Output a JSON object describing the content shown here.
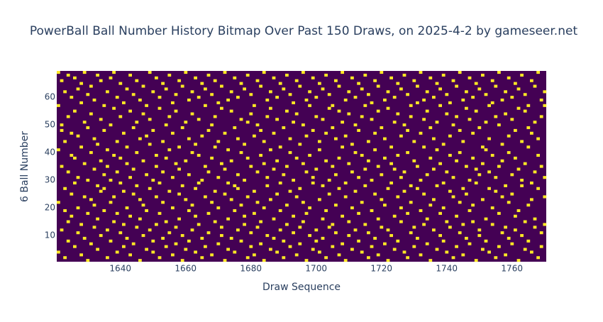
{
  "chart_data": {
    "type": "bitmap",
    "title": "PowerBall Ball Number History Bitmap Over Past 150 Draws, on 2025-4-2 by gameseer.net",
    "x_label": "Draw Sequence",
    "y_label": "6 Ball Number",
    "background_color": "#440154",
    "hit_color": "#fde725",
    "xlim": [
      1620.5,
      1770.5
    ],
    "ylim": [
      0.5,
      69.5
    ],
    "xticks": [
      1640,
      1660,
      1680,
      1700,
      1720,
      1740,
      1760
    ],
    "yticks": [
      10,
      20,
      30,
      40,
      50,
      60
    ],
    "x": [
      1621,
      1622,
      1623,
      1624,
      1625,
      1626,
      1627,
      1628,
      1629,
      1630,
      1631,
      1632,
      1633,
      1634,
      1635,
      1636,
      1637,
      1638,
      1639,
      1640,
      1641,
      1642,
      1643,
      1644,
      1645,
      1646,
      1647,
      1648,
      1649,
      1650,
      1651,
      1652,
      1653,
      1654,
      1655,
      1656,
      1657,
      1658,
      1659,
      1660,
      1661,
      1662,
      1663,
      1664,
      1665,
      1666,
      1667,
      1668,
      1669,
      1670,
      1671,
      1672,
      1673,
      1674,
      1675,
      1676,
      1677,
      1678,
      1679,
      1680,
      1681,
      1682,
      1683,
      1684,
      1685,
      1686,
      1687,
      1688,
      1689,
      1690,
      1691,
      1692,
      1693,
      1694,
      1695,
      1696,
      1697,
      1698,
      1699,
      1700,
      1701,
      1702,
      1703,
      1704,
      1705,
      1706,
      1707,
      1708,
      1709,
      1710,
      1711,
      1712,
      1713,
      1714,
      1715,
      1716,
      1717,
      1718,
      1719,
      1720,
      1721,
      1722,
      1723,
      1724,
      1725,
      1726,
      1727,
      1728,
      1729,
      1730,
      1731,
      1732,
      1733,
      1734,
      1735,
      1736,
      1737,
      1738,
      1739,
      1740,
      1741,
      1742,
      1743,
      1744,
      1745,
      1746,
      1747,
      1748,
      1749,
      1750,
      1751,
      1752,
      1753,
      1754,
      1755,
      1756,
      1757,
      1758,
      1759,
      1760,
      1761,
      1762,
      1763,
      1764,
      1765,
      1766,
      1767,
      1768,
      1769,
      1770
    ],
    "balls": [
      [
        4,
        22,
        41,
        57,
        69
      ],
      [
        12,
        35,
        48,
        50,
        66
      ],
      [
        2,
        19,
        27,
        44,
        62
      ],
      [
        8,
        15,
        33,
        53,
        68
      ],
      [
        17,
        25,
        39,
        47,
        60
      ],
      [
        6,
        29,
        38,
        55,
        67
      ],
      [
        11,
        20,
        31,
        46,
        63
      ],
      [
        3,
        14,
        42,
        58,
        65
      ],
      [
        9,
        24,
        36,
        51,
        69
      ],
      [
        1,
        18,
        30,
        49,
        61
      ],
      [
        7,
        23,
        40,
        54,
        64
      ],
      [
        13,
        21,
        34,
        45,
        59
      ],
      [
        5,
        16,
        28,
        43,
        68
      ],
      [
        10,
        26,
        37,
        52,
        66
      ],
      [
        19,
        27,
        32,
        48,
        57
      ],
      [
        2,
        12,
        35,
        41,
        62
      ],
      [
        8,
        22,
        30,
        50,
        67
      ],
      [
        15,
        24,
        39,
        56,
        69
      ],
      [
        4,
        18,
        33,
        44,
        60
      ],
      [
        11,
        29,
        38,
        53,
        65
      ],
      [
        6,
        14,
        26,
        47,
        58
      ],
      [
        9,
        20,
        36,
        42,
        63
      ],
      [
        3,
        17,
        31,
        55,
        68
      ],
      [
        7,
        25,
        34,
        49,
        61
      ],
      [
        13,
        28,
        40,
        51,
        66
      ],
      [
        1,
        16,
        23,
        45,
        59
      ],
      [
        10,
        21,
        37,
        54,
        64
      ],
      [
        5,
        19,
        32,
        46,
        57
      ],
      [
        12,
        27,
        43,
        52,
        69
      ],
      [
        4,
        8,
        30,
        48,
        62
      ],
      [
        14,
        24,
        35,
        39,
        67
      ],
      [
        2,
        18,
        29,
        56,
        60
      ],
      [
        9,
        22,
        33,
        44,
        65
      ],
      [
        6,
        15,
        38,
        50,
        63
      ],
      [
        11,
        26,
        41,
        53,
        68
      ],
      [
        3,
        20,
        31,
        47,
        58
      ],
      [
        7,
        13,
        36,
        55,
        61
      ],
      [
        16,
        25,
        34,
        42,
        66
      ],
      [
        1,
        10,
        28,
        49,
        64
      ],
      [
        5,
        23,
        37,
        51,
        69
      ],
      [
        8,
        19,
        32,
        45,
        59
      ],
      [
        12,
        21,
        40,
        54,
        62
      ],
      [
        4,
        17,
        27,
        43,
        67
      ],
      [
        14,
        29,
        39,
        52,
        60
      ],
      [
        2,
        9,
        30,
        46,
        65
      ],
      [
        6,
        24,
        35,
        57,
        63
      ],
      [
        11,
        18,
        33,
        48,
        68
      ],
      [
        3,
        22,
        38,
        50,
        61
      ],
      [
        15,
        26,
        42,
        53,
        66
      ],
      [
        7,
        20,
        31,
        44,
        58
      ],
      [
        10,
        13,
        36,
        56,
        64
      ],
      [
        1,
        25,
        34,
        47,
        69
      ],
      [
        5,
        16,
        29,
        41,
        59
      ],
      [
        9,
        23,
        37,
        55,
        62
      ],
      [
        4,
        19,
        28,
        49,
        67
      ],
      [
        12,
        27,
        32,
        45,
        60
      ],
      [
        8,
        21,
        40,
        52,
        65
      ],
      [
        14,
        17,
        30,
        43,
        63
      ],
      [
        2,
        24,
        38,
        51,
        68
      ],
      [
        6,
        11,
        35,
        54,
        61
      ],
      [
        3,
        18,
        26,
        46,
        57
      ],
      [
        13,
        22,
        33,
        50,
        66
      ],
      [
        7,
        15,
        39,
        48,
        64
      ],
      [
        1,
        20,
        36,
        44,
        69
      ],
      [
        10,
        28,
        31,
        53,
        59
      ],
      [
        5,
        23,
        41,
        56,
        62
      ],
      [
        9,
        16,
        34,
        47,
        67
      ],
      [
        4,
        25,
        37,
        52,
        60
      ],
      [
        12,
        19,
        29,
        42,
        65
      ],
      [
        2,
        8,
        32,
        49,
        63
      ],
      [
        14,
        21,
        35,
        55,
        68
      ],
      [
        6,
        26,
        40,
        45,
        61
      ],
      [
        11,
        17,
        30,
        51,
        58
      ],
      [
        3,
        24,
        38,
        54,
        66
      ],
      [
        7,
        13,
        27,
        43,
        64
      ],
      [
        15,
        22,
        36,
        50,
        69
      ],
      [
        1,
        18,
        33,
        46,
        59
      ],
      [
        10,
        20,
        39,
        57,
        62
      ],
      [
        5,
        29,
        31,
        48,
        67
      ],
      [
        8,
        12,
        34,
        53,
        60
      ],
      [
        4,
        23,
        41,
        44,
        65
      ],
      [
        9,
        16,
        28,
        52,
        63
      ],
      [
        2,
        19,
        37,
        47,
        68
      ],
      [
        13,
        25,
        30,
        56,
        61
      ],
      [
        6,
        14,
        35,
        49,
        57
      ],
      [
        11,
        21,
        32,
        45,
        66
      ],
      [
        3,
        27,
        38,
        55,
        64
      ],
      [
        7,
        17,
        42,
        51,
        69
      ],
      [
        1,
        24,
        29,
        46,
        59
      ],
      [
        10,
        15,
        36,
        54,
        62
      ],
      [
        5,
        20,
        33,
        43,
        67
      ],
      [
        12,
        26,
        40,
        50,
        60
      ],
      [
        8,
        18,
        31,
        48,
        65
      ],
      [
        4,
        22,
        39,
        53,
        63
      ],
      [
        14,
        28,
        34,
        57,
        68
      ],
      [
        2,
        11,
        37,
        44,
        61
      ],
      [
        6,
        19,
        30,
        52,
        58
      ],
      [
        9,
        25,
        41,
        47,
        66
      ],
      [
        3,
        16,
        35,
        55,
        64
      ],
      [
        13,
        23,
        32,
        49,
        69
      ],
      [
        7,
        21,
        38,
        45,
        59
      ],
      [
        1,
        12,
        27,
        56,
        62
      ],
      [
        10,
        29,
        36,
        42,
        67
      ],
      [
        5,
        17,
        34,
        51,
        60
      ],
      [
        8,
        24,
        39,
        54,
        65
      ],
      [
        15,
        20,
        31,
        46,
        63
      ],
      [
        4,
        26,
        33,
        50,
        68
      ],
      [
        2,
        18,
        40,
        48,
        61
      ],
      [
        11,
        22,
        28,
        53,
        57
      ],
      [
        6,
        13,
        37,
        44,
        66
      ],
      [
        9,
        27,
        35,
        58,
        64
      ],
      [
        3,
        19,
        30,
        47,
        69
      ],
      [
        14,
        25,
        42,
        52,
        59
      ],
      [
        7,
        16,
        32,
        55,
        62
      ],
      [
        1,
        21,
        38,
        49,
        67
      ],
      [
        12,
        23,
        34,
        45,
        60
      ],
      [
        5,
        28,
        41,
        51,
        65
      ],
      [
        10,
        18,
        36,
        57,
        63
      ],
      [
        8,
        20,
        29,
        43,
        68
      ],
      [
        4,
        15,
        33,
        54,
        61
      ],
      [
        13,
        26,
        39,
        46,
        58
      ],
      [
        2,
        24,
        31,
        50,
        66
      ],
      [
        6,
        17,
        37,
        53,
        64
      ],
      [
        11,
        22,
        40,
        48,
        69
      ],
      [
        3,
        14,
        27,
        44,
        59
      ],
      [
        9,
        25,
        35,
        56,
        62
      ],
      [
        7,
        19,
        30,
        52,
        67
      ],
      [
        15,
        21,
        38,
        47,
        60
      ],
      [
        1,
        29,
        34,
        55,
        65
      ],
      [
        10,
        12,
        32,
        49,
        63
      ],
      [
        5,
        23,
        36,
        42,
        68
      ],
      [
        8,
        16,
        41,
        51,
        61
      ],
      [
        4,
        27,
        33,
        45,
        57
      ],
      [
        14,
        20,
        39,
        58,
        66
      ],
      [
        2,
        26,
        31,
        53,
        64
      ],
      [
        6,
        18,
        35,
        50,
        69
      ],
      [
        11,
        24,
        37,
        43,
        59
      ],
      [
        3,
        13,
        28,
        54,
        62
      ],
      [
        9,
        22,
        40,
        46,
        67
      ],
      [
        7,
        25,
        32,
        52,
        60
      ],
      [
        12,
        17,
        38,
        48,
        65
      ],
      [
        1,
        19,
        34,
        56,
        63
      ],
      [
        10,
        28,
        30,
        44,
        68
      ],
      [
        5,
        15,
        36,
        55,
        61
      ],
      [
        8,
        21,
        42,
        49,
        57
      ],
      [
        4,
        23,
        29,
        47,
        66
      ],
      [
        13,
        16,
        33,
        51,
        64
      ],
      [
        2,
        27,
        39,
        45,
        69
      ],
      [
        6,
        11,
        35,
        53,
        59
      ],
      [
        14,
        24,
        31,
        57,
        62
      ]
    ]
  }
}
